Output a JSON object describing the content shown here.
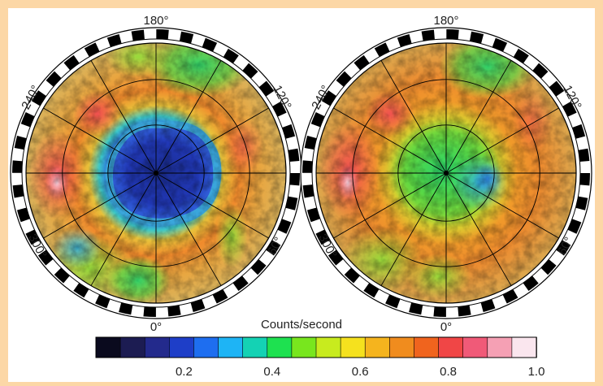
{
  "maps": [
    {
      "name": "left-map",
      "longitude_labels": {
        "top": "180°",
        "bottom": "0°",
        "upper_left": "240°",
        "upper_right": "120°",
        "lower_left": "300°",
        "lower_right": "60°"
      }
    },
    {
      "name": "right-map",
      "longitude_labels": {
        "top": "180°",
        "bottom": "0°",
        "upper_left": "240°",
        "upper_right": "120°",
        "lower_left": "300°",
        "lower_right": "60°"
      }
    }
  ],
  "colorbar": {
    "title": "Counts/second",
    "ticks": [
      "0.2",
      "0.4",
      "0.6",
      "0.8",
      "1.0"
    ],
    "tick_values": [
      0.2,
      0.4,
      0.6,
      0.8,
      1.0
    ],
    "min": 0.0,
    "max": 1.0,
    "colors": [
      "#0a0a1e",
      "#1c1c52",
      "#232a8c",
      "#1e3ec8",
      "#1e6ef0",
      "#1eb4f5",
      "#14d2b4",
      "#1ee150",
      "#78e61e",
      "#c8eb1e",
      "#f5e11e",
      "#f5b41e",
      "#f08c1e",
      "#f0641e",
      "#f04646",
      "#f05a78",
      "#f5a0b4",
      "#fae6ee"
    ]
  }
}
